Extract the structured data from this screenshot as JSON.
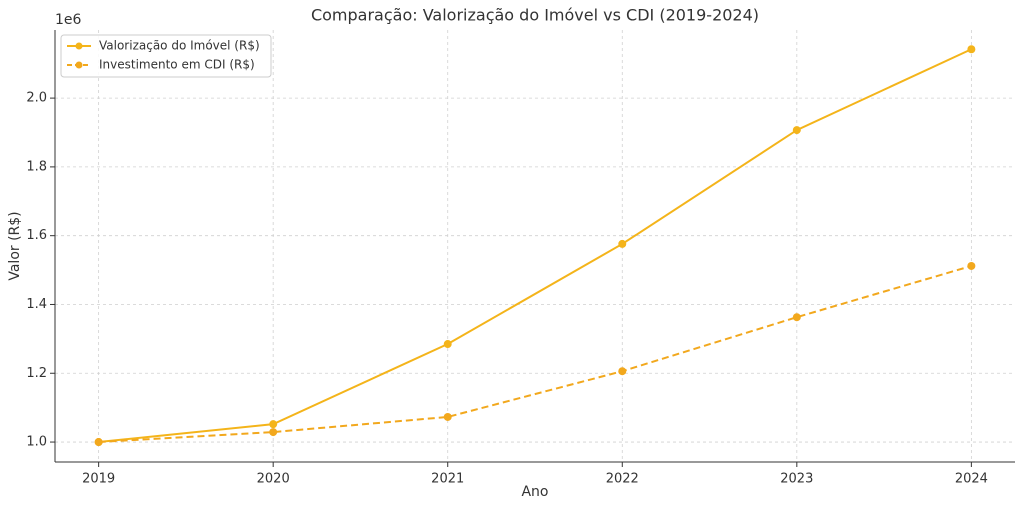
{
  "chart_data": {
    "type": "line",
    "title": "Comparação: Valorização do Imóvel vs CDI (2019-2024)",
    "x_label": "Ano",
    "y_label": "Valor (R$)",
    "y_offset_label": "1e6",
    "x": [
      2019,
      2020,
      2021,
      2022,
      2023,
      2024
    ],
    "series": [
      {
        "name": "Valorização do Imóvel (R$)",
        "color": "#f4b41a",
        "dash": "solid",
        "values": [
          1.0,
          1.052,
          1.285,
          1.576,
          1.907,
          2.142
        ]
      },
      {
        "name": "Investimento em CDI (R$)",
        "color": "#f2a81d",
        "dash": "dashed",
        "values": [
          1.0,
          1.029,
          1.073,
          1.206,
          1.363,
          1.512
        ]
      }
    ],
    "xlim": [
      2018.75,
      2024.25
    ],
    "xticks": [
      2019,
      2020,
      2021,
      2022,
      2023,
      2024
    ],
    "ylim": [
      0.942,
      2.198
    ],
    "yticks": [
      {
        "value": 1,
        "label": "1.0"
      },
      {
        "value": 1.2,
        "label": "1.2"
      },
      {
        "value": 1.4,
        "label": "1.4"
      },
      {
        "value": 1.6,
        "label": "1.6"
      },
      {
        "value": 1.8,
        "label": "1.8"
      },
      {
        "value": 2,
        "label": "2.0"
      }
    ],
    "grid": true,
    "legend": "upper-left"
  }
}
